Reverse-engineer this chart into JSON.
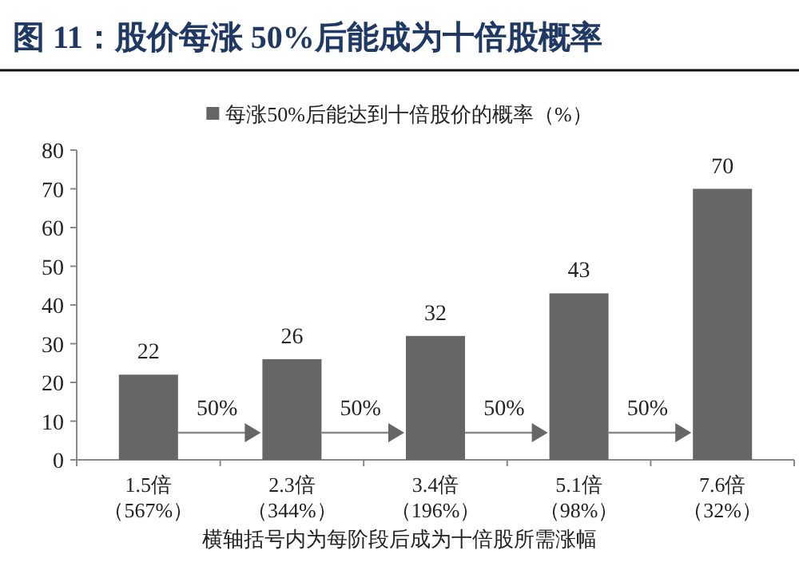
{
  "chart_data": {
    "type": "bar",
    "title": "图 11：股价每涨 50%后能成为十倍股概率",
    "categories": [
      "1.5倍（567%）",
      "2.3倍（344%）",
      "3.4倍（196%）",
      "5.1倍（98%）",
      "7.6倍（32%）"
    ],
    "series": [
      {
        "name": "每涨50%后能达到十倍股价的概率（%）",
        "color": "#666666",
        "values": [
          22,
          26,
          32,
          43,
          70
        ]
      }
    ],
    "ylim": [
      0,
      80
    ],
    "yticks": [
      0,
      10,
      20,
      30,
      40,
      50,
      60,
      70,
      80
    ],
    "data_labels": true,
    "legend": "top",
    "grid": false,
    "annotations": [
      "50%",
      "50%",
      "50%",
      "50%",
      "横轴括号内为每阶段后成为十倍股所需涨幅"
    ]
  }
}
